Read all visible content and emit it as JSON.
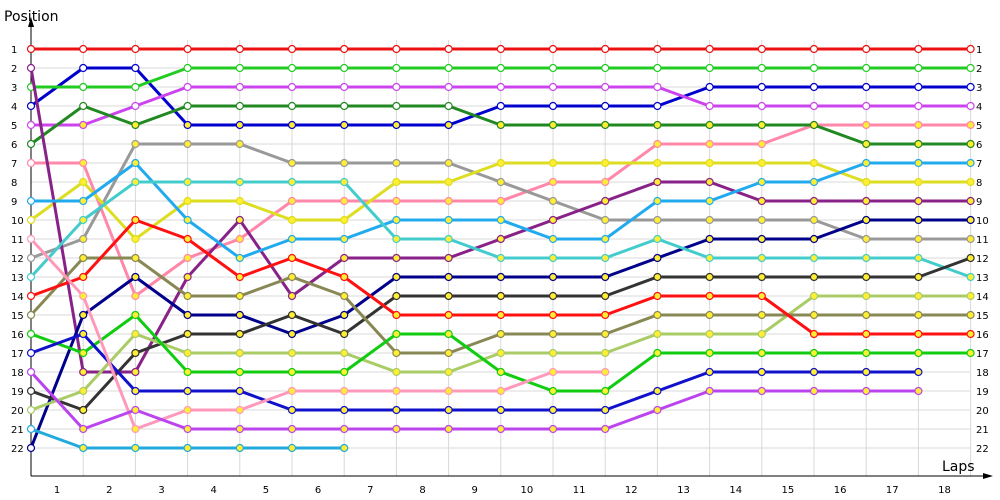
{
  "chart_data": {
    "type": "line",
    "title": "",
    "ylabel": "Position",
    "xlabel": "Laps",
    "x_ticks": [
      "1",
      "2",
      "3",
      "4",
      "5",
      "6",
      "7",
      "8",
      "9",
      "10",
      "11",
      "12",
      "13",
      "14",
      "15",
      "16",
      "17",
      "18"
    ],
    "y_ticks": [
      "1",
      "2",
      "3",
      "4",
      "5",
      "6",
      "7",
      "8",
      "9",
      "10",
      "11",
      "12",
      "13",
      "14",
      "15",
      "16",
      "17",
      "18",
      "19",
      "20",
      "21",
      "22"
    ],
    "ylim": [
      1,
      22
    ],
    "y_inverted": true,
    "grid": true,
    "legend": "none",
    "series": [
      {
        "color": "#ee1111",
        "positions": [
          1,
          1,
          1,
          1,
          1,
          1,
          1,
          1,
          1,
          1,
          1,
          1,
          1,
          1,
          1,
          1,
          1,
          1,
          1
        ]
      },
      {
        "color": "#0000cc",
        "positions": [
          4,
          2,
          2,
          5,
          5,
          5,
          5,
          5,
          5,
          4,
          4,
          4,
          4,
          3,
          3,
          3,
          3,
          3,
          3
        ]
      },
      {
        "color": "#22cc22",
        "positions": [
          3,
          3,
          3,
          2,
          2,
          2,
          2,
          2,
          2,
          2,
          2,
          2,
          2,
          2,
          2,
          2,
          2,
          2,
          2
        ]
      },
      {
        "color": "#cc44ee",
        "positions": [
          5,
          5,
          4,
          3,
          3,
          3,
          3,
          3,
          3,
          3,
          3,
          3,
          3,
          4,
          4,
          4,
          4,
          4,
          4
        ]
      },
      {
        "color": "#ff88aa",
        "positions": [
          7,
          7,
          14,
          12,
          11,
          9,
          9,
          9,
          9,
          9,
          8,
          8,
          6,
          6,
          6,
          5,
          5,
          5,
          5
        ]
      },
      {
        "color": "#228822",
        "positions": [
          6,
          4,
          5,
          4,
          4,
          4,
          4,
          4,
          4,
          5,
          5,
          5,
          5,
          5,
          5,
          5,
          6,
          6,
          6
        ]
      },
      {
        "color": "#999999",
        "positions": [
          12,
          11,
          6,
          6,
          6,
          7,
          7,
          7,
          7,
          8,
          9,
          10,
          10,
          10,
          10,
          10,
          11,
          11,
          11
        ]
      },
      {
        "color": "#dddd22",
        "positions": [
          10,
          8,
          11,
          9,
          9,
          10,
          10,
          8,
          8,
          7,
          7,
          7,
          7,
          7,
          7,
          7,
          8,
          8,
          8
        ]
      },
      {
        "color": "#882288",
        "positions": [
          2,
          18,
          18,
          13,
          10,
          14,
          12,
          12,
          12,
          11,
          10,
          9,
          8,
          8,
          9,
          9,
          9,
          9,
          9
        ]
      },
      {
        "color": "#00008b",
        "positions": [
          22,
          15,
          13,
          15,
          15,
          16,
          15,
          13,
          13,
          13,
          13,
          13,
          12,
          11,
          11,
          11,
          10,
          10,
          10
        ]
      },
      {
        "color": "#22aaee",
        "positions": [
          9,
          9,
          7,
          10,
          12,
          11,
          11,
          10,
          10,
          10,
          11,
          11,
          9,
          9,
          8,
          8,
          7,
          7,
          7
        ]
      },
      {
        "color": "#44cccc",
        "positions": [
          13,
          10,
          8,
          8,
          8,
          8,
          8,
          11,
          11,
          12,
          12,
          12,
          11,
          12,
          12,
          12,
          12,
          12,
          13
        ]
      },
      {
        "color": "#333333",
        "positions": [
          19,
          20,
          17,
          16,
          16,
          15,
          16,
          14,
          14,
          14,
          14,
          14,
          13,
          13,
          13,
          13,
          13,
          13,
          12
        ]
      },
      {
        "color": "#aacc66",
        "positions": [
          20,
          19,
          16,
          17,
          17,
          17,
          17,
          18,
          18,
          17,
          17,
          17,
          16,
          16,
          16,
          14,
          14,
          14,
          14
        ]
      },
      {
        "color": "#888855",
        "positions": [
          15,
          12,
          12,
          14,
          14,
          13,
          14,
          17,
          17,
          16,
          16,
          16,
          15,
          15,
          15,
          15,
          15,
          15,
          15
        ]
      },
      {
        "color": "#ff1111",
        "positions": [
          14,
          13,
          10,
          11,
          13,
          12,
          13,
          15,
          15,
          15,
          15,
          15,
          14,
          14,
          14,
          16,
          16,
          16,
          16
        ]
      },
      {
        "color": "#11cc11",
        "positions": [
          16,
          17,
          15,
          18,
          18,
          18,
          18,
          16,
          16,
          18,
          19,
          19,
          17,
          17,
          17,
          17,
          17,
          17,
          17
        ]
      },
      {
        "color": "#1111cc",
        "positions": [
          17,
          16,
          19,
          19,
          19,
          20,
          20,
          20,
          20,
          20,
          20,
          20,
          19,
          18,
          18,
          18,
          18,
          18
        ]
      },
      {
        "color": "#ff99bb",
        "positions": [
          11,
          14,
          21,
          20,
          20,
          19,
          19,
          19,
          19,
          19,
          18,
          18
        ]
      },
      {
        "color": "#bb44ee",
        "positions": [
          18,
          21,
          20,
          21,
          21,
          21,
          21,
          21,
          21,
          21,
          21,
          21,
          20,
          19,
          19,
          19,
          19,
          19
        ]
      },
      {
        "color": "#22aadd",
        "positions": [
          21,
          22,
          22,
          22,
          22,
          22,
          22
        ]
      }
    ]
  }
}
